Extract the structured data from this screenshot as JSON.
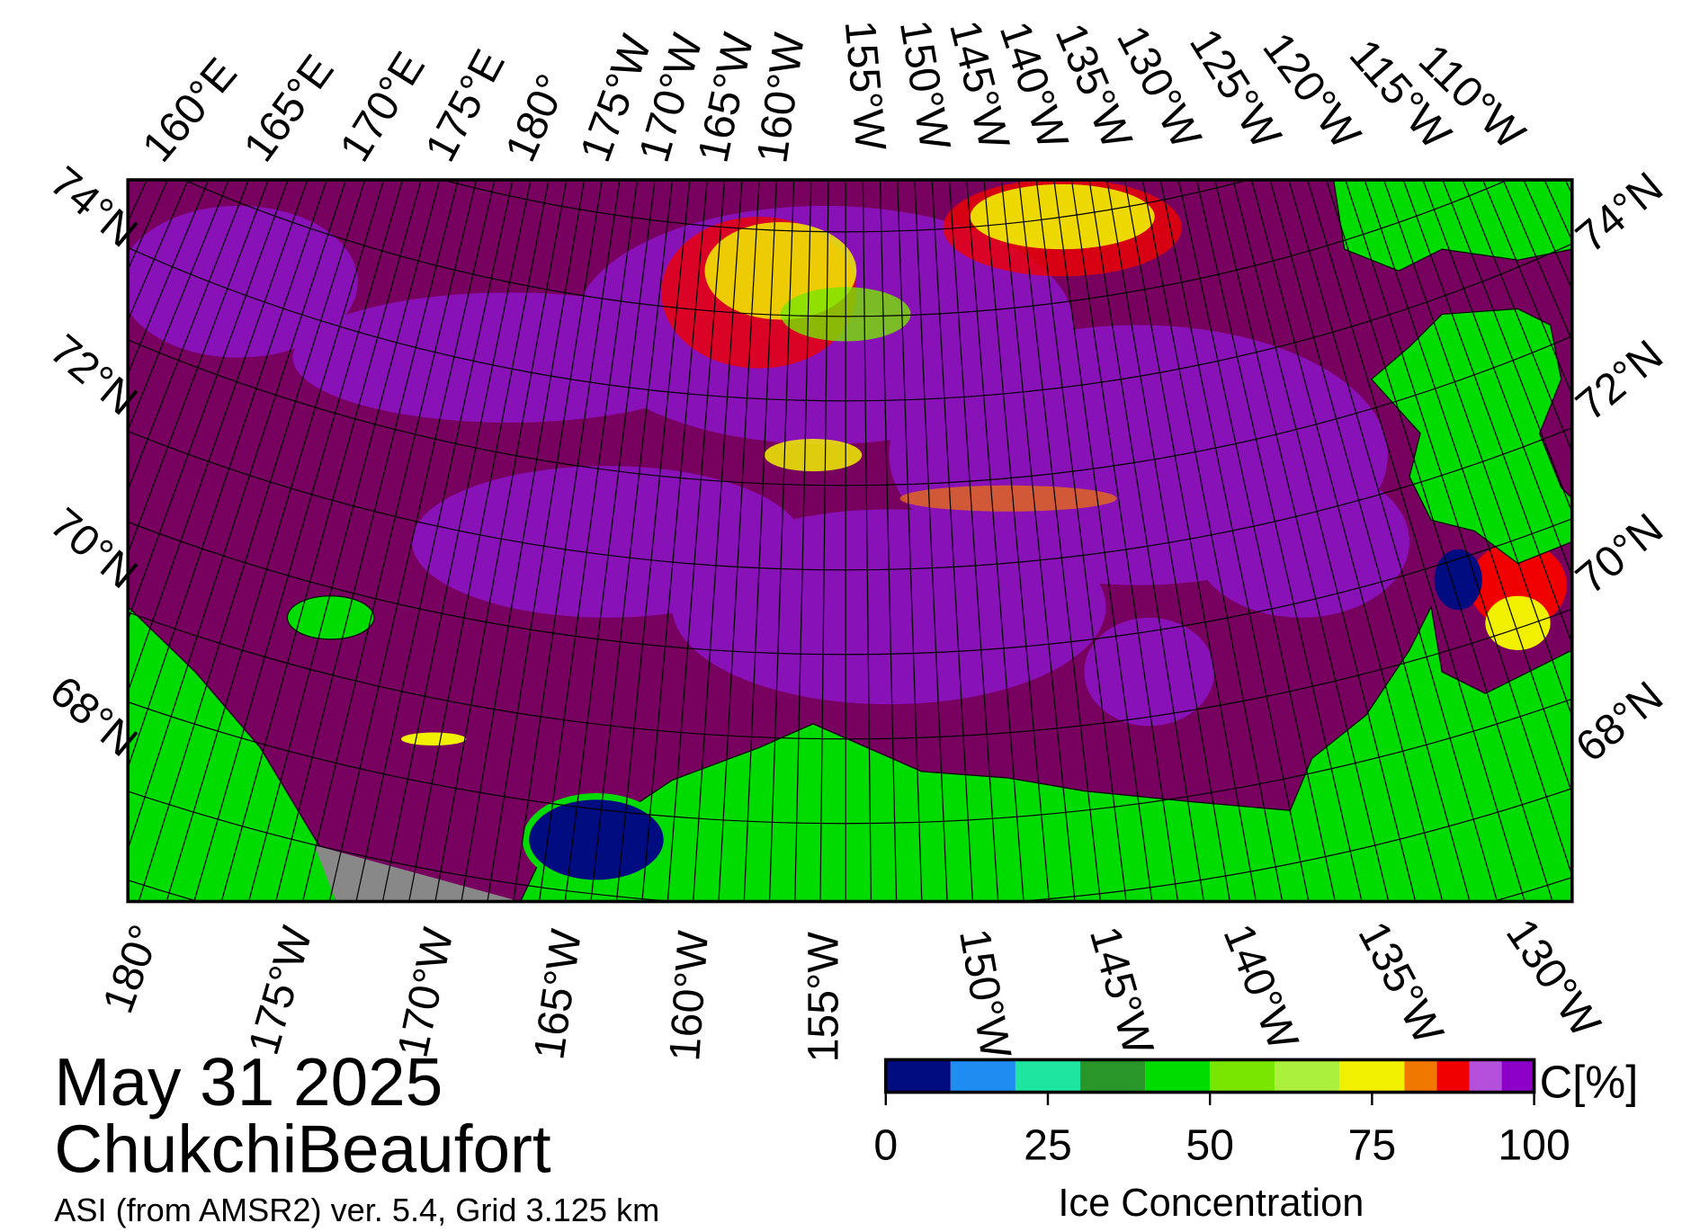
{
  "map": {
    "date": "May 31 2025",
    "region": "ChukchiBeaufort",
    "source": "ASI (from AMSR2) ver. 5.4,  Grid 3.125 km",
    "top_labels": [
      "160°E",
      "165°E",
      "170°E",
      "175°E",
      "180°",
      "175°W",
      "170°W",
      "165°W",
      "160°W",
      "155°W",
      "150°W",
      "145°W",
      "140°W",
      "135°W",
      "130°W",
      "125°W",
      "120°W",
      "115°W",
      "110°W"
    ],
    "bottom_labels": [
      "180°",
      "175°W",
      "170°W",
      "165°W",
      "160°W",
      "155°W",
      "150°W",
      "145°W",
      "140°W",
      "135°W",
      "130°W"
    ],
    "left_labels": [
      "74°N",
      "72°N",
      "70°N",
      "68°N"
    ],
    "right_labels": [
      "74°N",
      "72°N",
      "70°N",
      "68°N"
    ]
  },
  "colorbar": {
    "title": "Ice Concentration",
    "unit": "C[%]",
    "range": [
      0,
      100
    ],
    "ticks": [
      0,
      25,
      50,
      75,
      100
    ],
    "bins": [
      0,
      10,
      20,
      30,
      40,
      50,
      60,
      70,
      80,
      85,
      90,
      95,
      100
    ],
    "colors": [
      "#000c80",
      "#1e8cf0",
      "#1ee6a0",
      "#289628",
      "#00dc00",
      "#78e600",
      "#aaf03c",
      "#f0f000",
      "#f07800",
      "#f00000",
      "#b450dc",
      "#8c00c8"
    ]
  }
}
